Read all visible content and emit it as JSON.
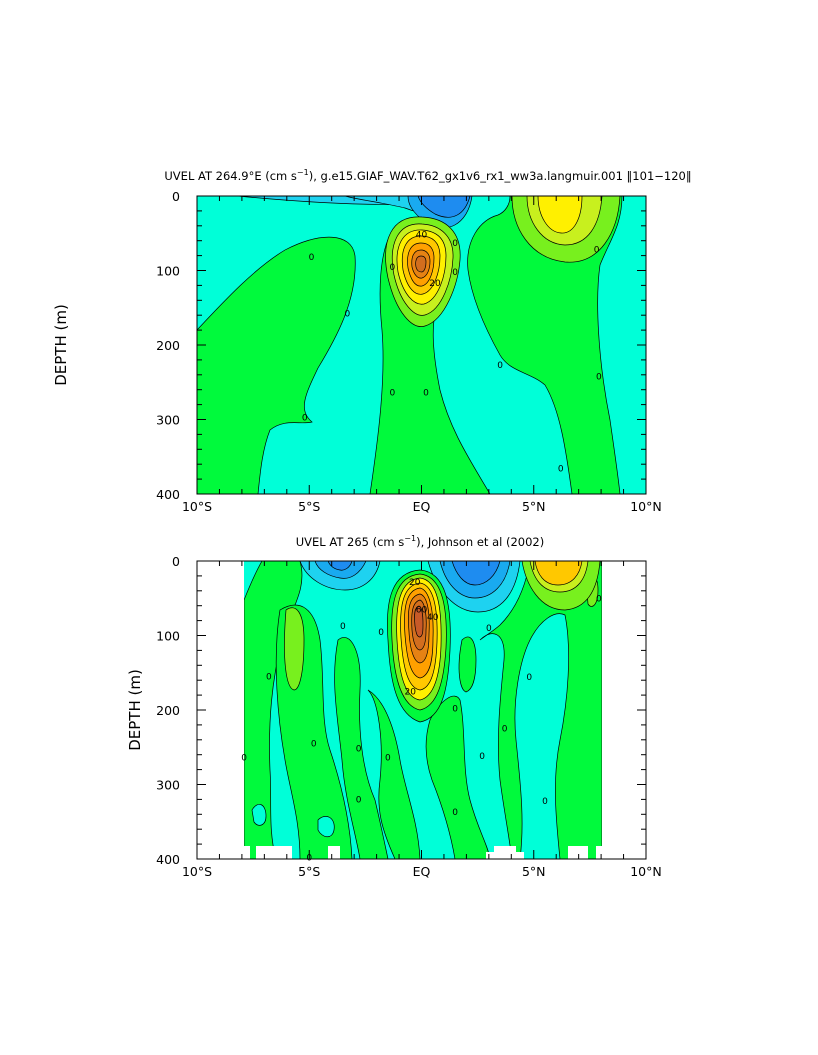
{
  "chart_data": [
    {
      "type": "heatmap",
      "title_prefix": "UVEL AT 264.9°E (cm s",
      "title_sup": "−1",
      "title_suffix": "), g.e15.GIAF_WAV.T62_gx1v6_rx1_ww3a.langmuir.001 ‖101−120‖",
      "ylabel": "DEPTH (m)",
      "xlabel": "",
      "xlim": [
        -10,
        10
      ],
      "ylim": [
        400,
        0
      ],
      "x_ticks": [
        {
          "value": -10,
          "label": "10°S"
        },
        {
          "value": -5,
          "label": "5°S"
        },
        {
          "value": 0,
          "label": "EQ"
        },
        {
          "value": 5,
          "label": "5°N"
        },
        {
          "value": 10,
          "label": "10°N"
        }
      ],
      "y_ticks": [
        {
          "value": 0,
          "label": "0"
        },
        {
          "value": 100,
          "label": "100"
        },
        {
          "value": 200,
          "label": "200"
        },
        {
          "value": 300,
          "label": "300"
        },
        {
          "value": 400,
          "label": "400"
        }
      ],
      "contour_labels": [
        {
          "x": 0.0,
          "y": 52,
          "text": "40"
        },
        {
          "x": 0.6,
          "y": 117,
          "text": "20"
        },
        {
          "x": -4.9,
          "y": 82,
          "text": "0"
        },
        {
          "x": -3.3,
          "y": 158,
          "text": "0"
        },
        {
          "x": -5.2,
          "y": 297,
          "text": "0"
        },
        {
          "x": -1.3,
          "y": 95,
          "text": "0"
        },
        {
          "x": -1.3,
          "y": 264,
          "text": "0"
        },
        {
          "x": 0.2,
          "y": 264,
          "text": "0"
        },
        {
          "x": 1.5,
          "y": 63,
          "text": "0"
        },
        {
          "x": 1.5,
          "y": 102,
          "text": "0"
        },
        {
          "x": 3.5,
          "y": 227,
          "text": "0"
        },
        {
          "x": 6.2,
          "y": 366,
          "text": "0"
        },
        {
          "x": 7.8,
          "y": 72,
          "text": "0"
        },
        {
          "x": 7.9,
          "y": 242,
          "text": "0"
        }
      ]
    },
    {
      "type": "heatmap",
      "title_prefix": "UVEL AT 265 (cm s",
      "title_sup": "−1",
      "title_suffix": "), Johnson et al (2002)",
      "ylabel": "DEPTH (m)",
      "xlabel": "",
      "xlim": [
        -10,
        10
      ],
      "ylim": [
        400,
        0
      ],
      "data_extent_x": [
        -8,
        8
      ],
      "x_ticks": [
        {
          "value": -10,
          "label": "10°S"
        },
        {
          "value": -5,
          "label": "5°S"
        },
        {
          "value": 0,
          "label": "EQ"
        },
        {
          "value": 5,
          "label": "5°N"
        },
        {
          "value": 10,
          "label": "10°N"
        }
      ],
      "y_ticks": [
        {
          "value": 0,
          "label": "0"
        },
        {
          "value": 100,
          "label": "100"
        },
        {
          "value": 200,
          "label": "200"
        },
        {
          "value": 300,
          "label": "300"
        },
        {
          "value": 400,
          "label": "400"
        }
      ],
      "contour_labels": [
        {
          "x": -0.3,
          "y": 28,
          "text": "20"
        },
        {
          "x": 0.0,
          "y": 65,
          "text": "60"
        },
        {
          "x": 0.5,
          "y": 75,
          "text": "40"
        },
        {
          "x": -0.5,
          "y": 175,
          "text": "20"
        },
        {
          "x": -7.9,
          "y": 264,
          "text": "0"
        },
        {
          "x": -6.8,
          "y": 155,
          "text": "0"
        },
        {
          "x": -4.8,
          "y": 245,
          "text": "0"
        },
        {
          "x": -3.5,
          "y": 87,
          "text": "0"
        },
        {
          "x": -2.8,
          "y": 252,
          "text": "0"
        },
        {
          "x": -2.8,
          "y": 320,
          "text": "0"
        },
        {
          "x": -1.8,
          "y": 95,
          "text": "0"
        },
        {
          "x": -1.5,
          "y": 264,
          "text": "0"
        },
        {
          "x": 1.5,
          "y": 198,
          "text": "0"
        },
        {
          "x": 1.5,
          "y": 337,
          "text": "0"
        },
        {
          "x": 2.7,
          "y": 262,
          "text": "0"
        },
        {
          "x": 3.0,
          "y": 90,
          "text": "0"
        },
        {
          "x": 3.7,
          "y": 225,
          "text": "0"
        },
        {
          "x": 4.8,
          "y": 156,
          "text": "0"
        },
        {
          "x": 5.5,
          "y": 322,
          "text": "0"
        },
        {
          "x": 7.9,
          "y": 50,
          "text": "0"
        },
        {
          "x": -5.0,
          "y": 398,
          "text": "0"
        }
      ]
    }
  ],
  "colors": {
    "cyan": "#00ffd8",
    "light_blue": "#1ed2f0",
    "mid_blue": "#19aaf0",
    "blue": "#1e8cf0",
    "green": "#00fa3c",
    "light_green": "#78f01e",
    "yellow_green": "#c8f01e",
    "yellow": "#fff000",
    "gold": "#ffc800",
    "orange": "#ffa000",
    "dark_orange": "#e68214",
    "brown_orange": "#d26e1e",
    "white": "#ffffff"
  }
}
